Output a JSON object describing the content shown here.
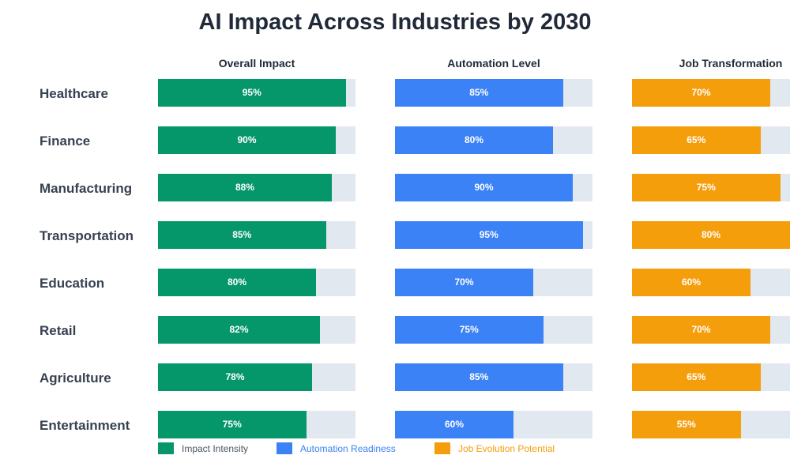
{
  "chart_data": {
    "type": "bar",
    "title": "AI Impact Across Industries by 2030",
    "categories": [
      "Healthcare",
      "Finance",
      "Manufacturing",
      "Transportation",
      "Education",
      "Retail",
      "Agriculture",
      "Entertainment"
    ],
    "series": [
      {
        "name": "Overall Impact",
        "legend": "Impact Intensity",
        "color": "#059669",
        "legend_text_color": "#4b5563",
        "values": [
          95,
          90,
          88,
          85,
          80,
          82,
          78,
          75
        ]
      },
      {
        "name": "Automation Level",
        "legend": "Automation Readiness",
        "color": "#3b82f6",
        "legend_text_color": "#3b82f6",
        "values": [
          85,
          80,
          90,
          95,
          70,
          75,
          85,
          60
        ]
      },
      {
        "name": "Job Transformation",
        "legend": "Job Evolution Potential",
        "color": "#f59e0b",
        "legend_text_color": "#f59e0b",
        "values": [
          70,
          65,
          75,
          80,
          60,
          70,
          65,
          55
        ]
      }
    ],
    "value_suffix": "%",
    "xlim": [
      0,
      100
    ],
    "track_color": "#e2e8f0",
    "legend_position": "bottom-left"
  }
}
